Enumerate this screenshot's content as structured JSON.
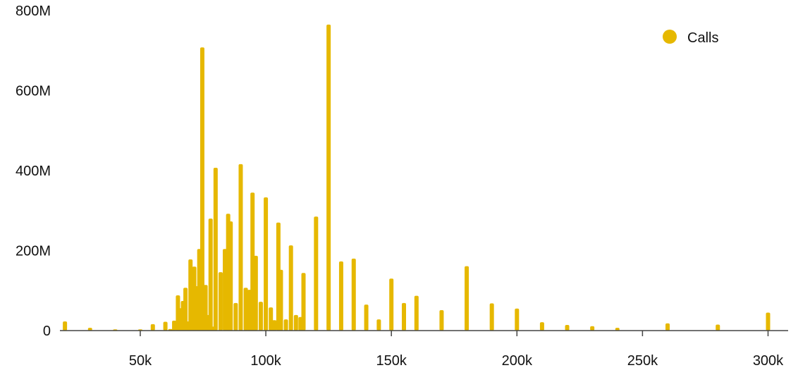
{
  "chart_data": {
    "type": "bar",
    "title": "",
    "xlabel": "",
    "ylabel": "",
    "color": "#E6B800",
    "legend": {
      "position": "top-right",
      "entries": [
        "Calls"
      ]
    },
    "grid": false,
    "xlim": [
      18000,
      308000
    ],
    "ylim": [
      0,
      800000000
    ],
    "x_ticks": [
      50000,
      100000,
      150000,
      200000,
      250000,
      300000
    ],
    "x_tick_labels": [
      "50k",
      "100k",
      "150k",
      "200k",
      "250k",
      "300k"
    ],
    "y_ticks": [
      0,
      200000000,
      400000000,
      600000000,
      800000000
    ],
    "y_tick_labels": [
      "0",
      "200M",
      "400M",
      "600M",
      "800M"
    ],
    "series": [
      {
        "name": "Calls",
        "x": [
          20000,
          30000,
          40000,
          50000,
          55000,
          60000,
          62000,
          63500,
          65000,
          66000,
          67000,
          68000,
          69000,
          70000,
          71500,
          72500,
          73500,
          74700,
          76000,
          76700,
          78000,
          79000,
          80000,
          82000,
          83700,
          85000,
          86000,
          88000,
          90000,
          92000,
          93500,
          94700,
          96000,
          98000,
          100000,
          102000,
          103400,
          105000,
          106000,
          108000,
          110000,
          112000,
          113800,
          115000,
          120000,
          125000,
          130000,
          135000,
          140000,
          145000,
          150000,
          155000,
          160000,
          170000,
          180000,
          190000,
          200000,
          210000,
          220000,
          230000,
          240000,
          260000,
          280000,
          300000
        ],
        "values": [
          23000000,
          7000000,
          3000000,
          3000000,
          16000000,
          22000000,
          4000000,
          25000000,
          88000000,
          56000000,
          74000000,
          107000000,
          23000000,
          178000000,
          160000000,
          111000000,
          204000000,
          708000000,
          114000000,
          39000000,
          280000000,
          10000000,
          407000000,
          146000000,
          204000000,
          292000000,
          273000000,
          69000000,
          416000000,
          107000000,
          102000000,
          345000000,
          187000000,
          72000000,
          333000000,
          58000000,
          26000000,
          270000000,
          152000000,
          28000000,
          213000000,
          39000000,
          34000000,
          144000000,
          285000000,
          765000000,
          173000000,
          180000000,
          65000000,
          28000000,
          130000000,
          69000000,
          87000000,
          51000000,
          161000000,
          68000000,
          55000000,
          21000000,
          14000000,
          11000000,
          7000000,
          18000000,
          15000000,
          45000000
        ]
      }
    ]
  }
}
